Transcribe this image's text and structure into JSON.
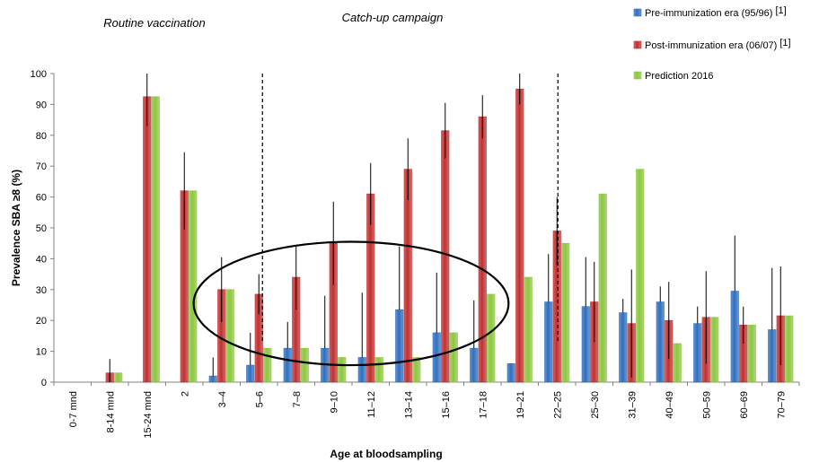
{
  "chart_data": {
    "type": "bar",
    "title": "",
    "xlabel": "Age at bloodsampling",
    "ylabel": "Prevalence SBA ≥8 (%)",
    "ylim": [
      0,
      100
    ],
    "yticks": [
      0,
      10,
      20,
      30,
      40,
      50,
      60,
      70,
      80,
      90,
      100
    ],
    "grid": false,
    "legend_position": "top-right",
    "categories": [
      "0-7 mnd",
      "8-14 mnd",
      "15-24 mnd",
      "2",
      "3–4",
      "5–6",
      "7–8",
      "9–10",
      "11–12",
      "13–14",
      "15–16",
      "17–18",
      "19–21",
      "22–25",
      "25–30",
      "31–39",
      "40–49",
      "50–59",
      "60–69",
      "70–79"
    ],
    "series": [
      {
        "name": "Pre-immunization era (95/96)",
        "name_ref": "[1]",
        "color": "#2f6fbf",
        "values": [
          null,
          null,
          null,
          null,
          2,
          5.5,
          11,
          11,
          8,
          23.5,
          16,
          11,
          6,
          26,
          24.5,
          22.5,
          26,
          19,
          29.5,
          17
        ],
        "err_upper": [
          null,
          null,
          null,
          null,
          8,
          16,
          19.5,
          28,
          29,
          44,
          35.5,
          26.5,
          null,
          41.5,
          40.5,
          27,
          31,
          24.5,
          47.5,
          37
        ]
      },
      {
        "name": "Post-immunization era (06/07)",
        "name_ref": "[1]",
        "color": "#c0302f",
        "values": [
          null,
          3,
          92.5,
          62,
          30,
          28.5,
          34,
          45,
          61,
          69,
          81.5,
          86,
          95,
          49,
          26,
          19,
          20,
          21,
          18.5,
          21.5
        ],
        "err_upper": [
          null,
          7.5,
          100,
          74.5,
          40.5,
          35,
          44.5,
          58.5,
          71,
          79,
          90.5,
          93,
          100,
          60,
          39,
          36.5,
          32.5,
          36,
          24.5,
          37.5
        ],
        "err_lower": [
          null,
          0,
          83,
          49.5,
          19.5,
          22,
          23.5,
          31.5,
          51,
          59,
          72.5,
          79,
          90,
          38,
          13,
          1.5,
          7.5,
          6,
          12.5,
          5.5
        ]
      },
      {
        "name": "Prediction 2016",
        "name_ref": "",
        "color": "#8cc63f",
        "values": [
          null,
          3,
          92.5,
          62,
          30,
          11,
          11,
          8,
          8,
          8,
          16,
          28.5,
          34,
          45,
          61,
          69,
          12.5,
          21,
          18.5,
          21.5
        ]
      }
    ],
    "annotations": {
      "sections": [
        "Routine vaccination",
        "Catch-up campaign"
      ],
      "dashed_lines_after_categories": [
        "5–6",
        "22–25"
      ],
      "ellipse_categories": [
        "3–4",
        "17–18"
      ]
    }
  }
}
